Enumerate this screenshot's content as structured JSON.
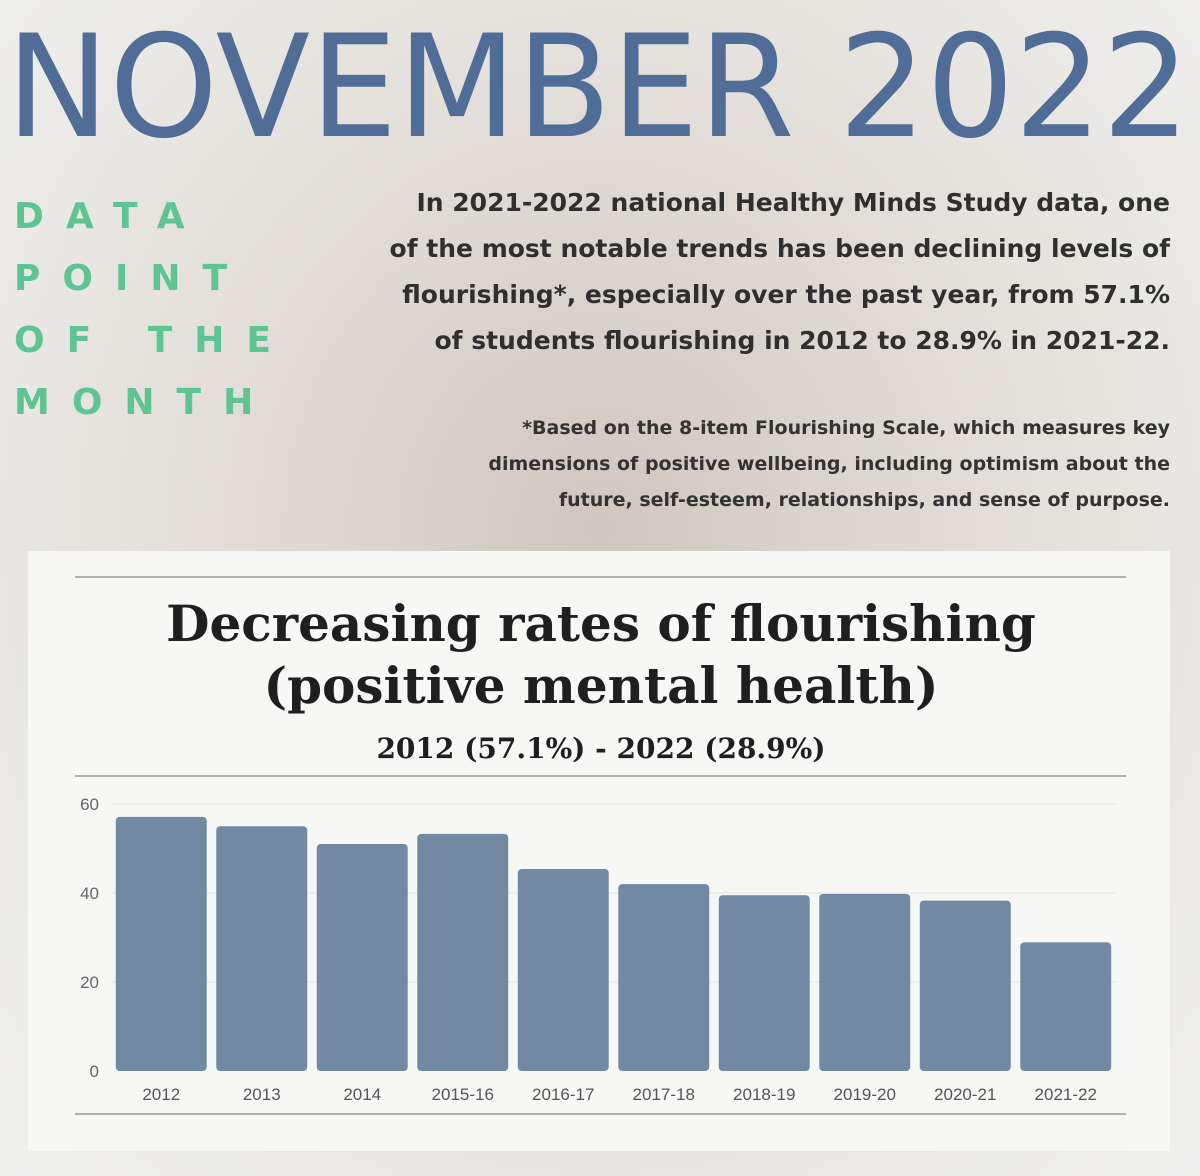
{
  "header": {
    "title": "NOVEMBER 2022"
  },
  "badge": {
    "lines": [
      "DATA",
      "POINT",
      "OF THE",
      "MONTH"
    ]
  },
  "intro": {
    "lines": [
      "In 2021-2022 national Healthy Minds Study data, one",
      "of the most notable trends has been declining levels of",
      "flourishing*, especially over the past year, from 57.1%",
      "of students flourishing in 2012 to 28.9% in 2021-22."
    ]
  },
  "footnote": {
    "lines": [
      "*Based on the 8-item Flourishing Scale, which measures key",
      "dimensions of positive wellbeing, including optimism about the",
      "future, self-esteem, relationships, and sense of purpose."
    ]
  },
  "colors": {
    "headline": "#4f6d97",
    "badge": "#5dc492",
    "bar": "#7189a3",
    "text": "#2f2f2f"
  },
  "chart_data": {
    "type": "bar",
    "title": "Decreasing rates of flourishing",
    "title_line2": "(positive mental health)",
    "subtitle": "2012 (57.1%) - 2022 (28.9%)",
    "xlabel": "",
    "ylabel": "",
    "categories": [
      "2012",
      "2013",
      "2014",
      "2015-16",
      "2016-17",
      "2017-18",
      "2018-19",
      "2019-20",
      "2020-21",
      "2021-22"
    ],
    "values": [
      57.1,
      55.0,
      51.0,
      53.3,
      45.4,
      42.0,
      39.5,
      39.8,
      38.3,
      28.9
    ],
    "yticks": [
      "0",
      "20",
      "40",
      "60"
    ],
    "ylim": [
      0,
      60
    ],
    "grid": true,
    "legend": "none"
  }
}
